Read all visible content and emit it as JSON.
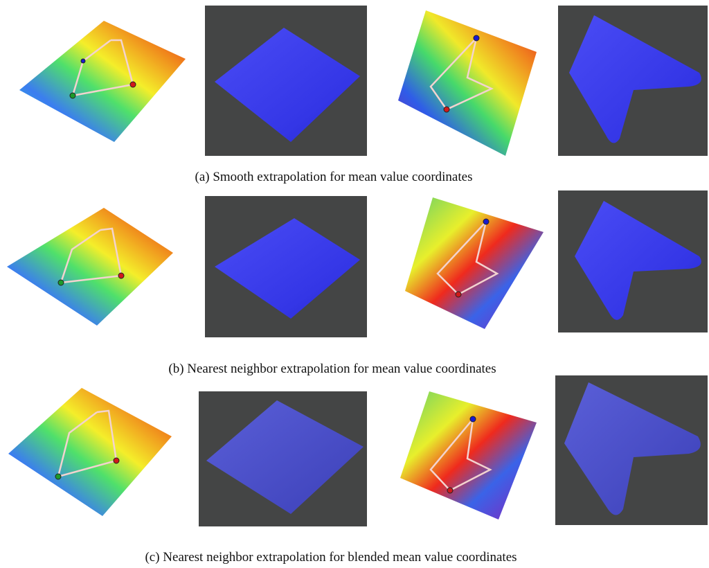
{
  "figure": {
    "captions": [
      "(a) Smooth extrapolation for mean value coordinates",
      "(b) Nearest neighbor extrapolation for mean value coordinates",
      "(c) Nearest neighbor extrapolation for blended mean value coordinates"
    ]
  }
}
